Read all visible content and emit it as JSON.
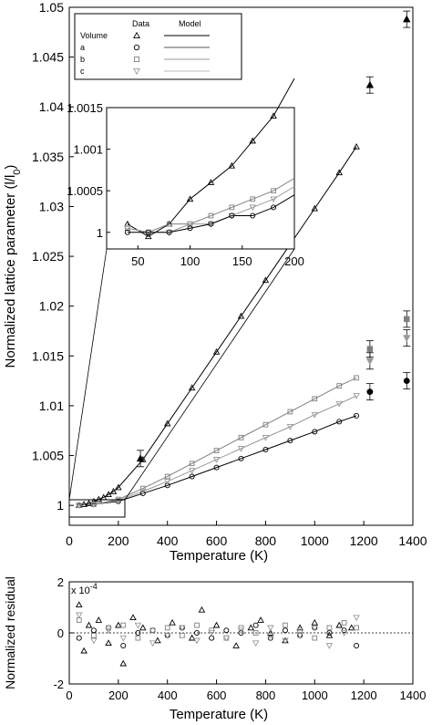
{
  "chart_data": [
    {
      "type": "scatter",
      "panel": "main",
      "xlabel": "Temperature (K)",
      "ylabel": "Normalized lattice parameter (l/l0)",
      "xlim": [
        0,
        1400
      ],
      "ylim": [
        0.998,
        1.05
      ],
      "xticks": [
        "0",
        "200",
        "400",
        "600",
        "800",
        "1000",
        "1200",
        "1400"
      ],
      "yticks": [
        "1",
        "1.005",
        "1.01",
        "1.015",
        "1.02",
        "1.025",
        "1.03",
        "1.035",
        "1.04",
        "1.045",
        "1.05"
      ],
      "legend": {
        "position": "top-left",
        "row_header": "Volume",
        "data_header": "Data",
        "model_header": "Model",
        "rows": [
          "a",
          "b",
          "c"
        ]
      },
      "series": [
        {
          "name": "Volume",
          "marker": "triangle-up",
          "color": "#000000",
          "x": [
            40,
            60,
            80,
            100,
            120,
            140,
            160,
            180,
            200,
            300,
            400,
            500,
            600,
            700,
            800,
            900,
            1000,
            1100,
            1170
          ],
          "y": [
            1.0,
            1.0001,
            1.0002,
            1.0004,
            1.0006,
            1.0008,
            1.0011,
            1.0014,
            1.0018,
            1.0046,
            1.0082,
            1.0118,
            1.0154,
            1.019,
            1.0226,
            1.0262,
            1.0298,
            1.0334,
            1.036
          ]
        },
        {
          "name": "a",
          "marker": "circle",
          "color": "#000000",
          "x": [
            40,
            100,
            200,
            300,
            400,
            500,
            600,
            700,
            800,
            900,
            1000,
            1100,
            1170
          ],
          "y": [
            1.0,
            1.0001,
            1.0004,
            1.0012,
            1.002,
            1.0029,
            1.0038,
            1.0047,
            1.0056,
            1.0065,
            1.0074,
            1.0084,
            1.009
          ]
        },
        {
          "name": "b",
          "marker": "square",
          "color": "#7f7f7f",
          "x": [
            40,
            100,
            200,
            300,
            400,
            500,
            600,
            700,
            800,
            900,
            1000,
            1100,
            1170
          ],
          "y": [
            1.0,
            1.0001,
            1.0006,
            1.0017,
            1.0029,
            1.0042,
            1.0055,
            1.0068,
            1.0081,
            1.0094,
            1.0107,
            1.012,
            1.0128
          ]
        },
        {
          "name": "c",
          "marker": "triangle-down",
          "color": "#9a9a9a",
          "x": [
            40,
            100,
            200,
            300,
            400,
            500,
            600,
            700,
            800,
            900,
            1000,
            1100,
            1170
          ],
          "y": [
            1.0,
            1.0001,
            1.0005,
            1.0014,
            1.0024,
            1.0035,
            1.0046,
            1.0057,
            1.0068,
            1.0079,
            1.0091,
            1.0102,
            1.011
          ]
        }
      ],
      "high_t_points": [
        {
          "series": "Volume",
          "x": 1225,
          "y": 1.0422
        },
        {
          "series": "Volume",
          "x": 1375,
          "y": 1.0488
        },
        {
          "series": "b",
          "x": 1225,
          "y": 1.0157
        },
        {
          "series": "c",
          "x": 1225,
          "y": 1.0145
        },
        {
          "series": "a",
          "x": 1225,
          "y": 1.0114
        },
        {
          "series": "b",
          "x": 1375,
          "y": 1.0187
        },
        {
          "series": "c",
          "x": 1375,
          "y": 1.0168
        },
        {
          "series": "a",
          "x": 1375,
          "y": 1.0125
        },
        {
          "series": "Volume",
          "x": 290,
          "y": 1.0047
        }
      ]
    },
    {
      "type": "line",
      "panel": "inset",
      "xlim": [
        20,
        200
      ],
      "ylim": [
        0.9998,
        1.0015
      ],
      "xticks": [
        "50",
        "100",
        "150",
        "200"
      ],
      "yticks": [
        "1",
        "1.0005",
        "1.001",
        "1.0015"
      ],
      "series": [
        {
          "name": "Volume",
          "x": [
            40,
            60,
            80,
            100,
            120,
            140,
            160,
            180
          ],
          "y": [
            1.0001,
            0.99995,
            1.0001,
            1.0004,
            1.0006,
            1.0008,
            1.0011,
            1.0014
          ]
        },
        {
          "name": "b",
          "x": [
            40,
            60,
            80,
            100,
            120,
            140,
            160,
            180
          ],
          "y": [
            1.00005,
            1.0,
            1.0001,
            1.0001,
            1.0002,
            1.0003,
            1.0004,
            1.0005
          ]
        },
        {
          "name": "c",
          "x": [
            40,
            60,
            80,
            100,
            120,
            140,
            160,
            180
          ],
          "y": [
            1.00005,
            1.0,
            1.0,
            1.0001,
            1.0001,
            1.0002,
            1.0003,
            1.0004
          ]
        },
        {
          "name": "a",
          "x": [
            40,
            60,
            80,
            100,
            120,
            140,
            160,
            180
          ],
          "y": [
            1.0,
            1.0,
            1.0,
            1.00005,
            1.0001,
            1.0002,
            1.0002,
            1.0003
          ]
        }
      ]
    },
    {
      "type": "scatter",
      "panel": "residual",
      "xlabel": "Temperature (K)",
      "ylabel": "Normalized residual",
      "exponent_label": "x 10",
      "exponent_power": "-4",
      "xlim": [
        0,
        1400
      ],
      "ylim": [
        -2,
        2
      ],
      "xticks": [
        "0",
        "200",
        "400",
        "600",
        "800",
        "1000",
        "1200",
        "1400"
      ],
      "yticks": [
        "-2",
        "0",
        "2"
      ],
      "zero_line": "dotted",
      "series": [
        {
          "name": "Volume",
          "x": [
            40,
            60,
            80,
            120,
            160,
            200,
            220,
            260,
            300,
            360,
            420,
            500,
            540,
            600,
            680,
            740,
            780,
            820,
            880,
            940,
            1000,
            1060,
            1100,
            1150
          ],
          "y": [
            1.1,
            -0.7,
            0.3,
            0.5,
            -0.4,
            0.3,
            -1.2,
            0.6,
            0.2,
            -0.3,
            0.4,
            -0.2,
            0.9,
            0.3,
            -0.5,
            0.2,
            0.5,
            0.0,
            -0.3,
            0.2,
            0.4,
            -0.1,
            0.3,
            0.2
          ]
        },
        {
          "name": "a",
          "x": [
            40,
            100,
            160,
            220,
            280,
            340,
            400,
            460,
            520,
            580,
            640,
            700,
            760,
            820,
            880,
            940,
            1000,
            1060,
            1120,
            1170
          ],
          "y": [
            -0.2,
            0.1,
            0.2,
            -0.5,
            0.0,
            0.1,
            -0.1,
            0.2,
            0.0,
            -0.2,
            0.1,
            0.0,
            0.3,
            -0.2,
            0.1,
            -0.1,
            0.2,
            0.0,
            0.1,
            -0.5
          ]
        },
        {
          "name": "b",
          "x": [
            40,
            100,
            160,
            220,
            280,
            340,
            400,
            460,
            520,
            580,
            640,
            700,
            760,
            820,
            880,
            940,
            1000,
            1060,
            1120,
            1170
          ],
          "y": [
            0.5,
            -0.1,
            0.2,
            0.3,
            -0.2,
            0.1,
            0.2,
            -0.1,
            0.3,
            0.1,
            -0.2,
            0.2,
            0.0,
            -0.1,
            0.3,
            0.1,
            -0.2,
            0.2,
            0.4,
            0.2
          ]
        },
        {
          "name": "c",
          "x": [
            40,
            100,
            160,
            220,
            280,
            340,
            400,
            460,
            520,
            580,
            640,
            700,
            760,
            820,
            880,
            940,
            1000,
            1060,
            1120,
            1170
          ],
          "y": [
            0.7,
            -0.3,
            0.1,
            -0.2,
            0.3,
            -0.4,
            -0.1,
            0.2,
            -0.3,
            0.0,
            -0.2,
            0.1,
            -0.4,
            0.2,
            -0.3,
            -0.1,
            0.2,
            -0.5,
            0.0,
            0.6
          ]
        }
      ]
    }
  ]
}
